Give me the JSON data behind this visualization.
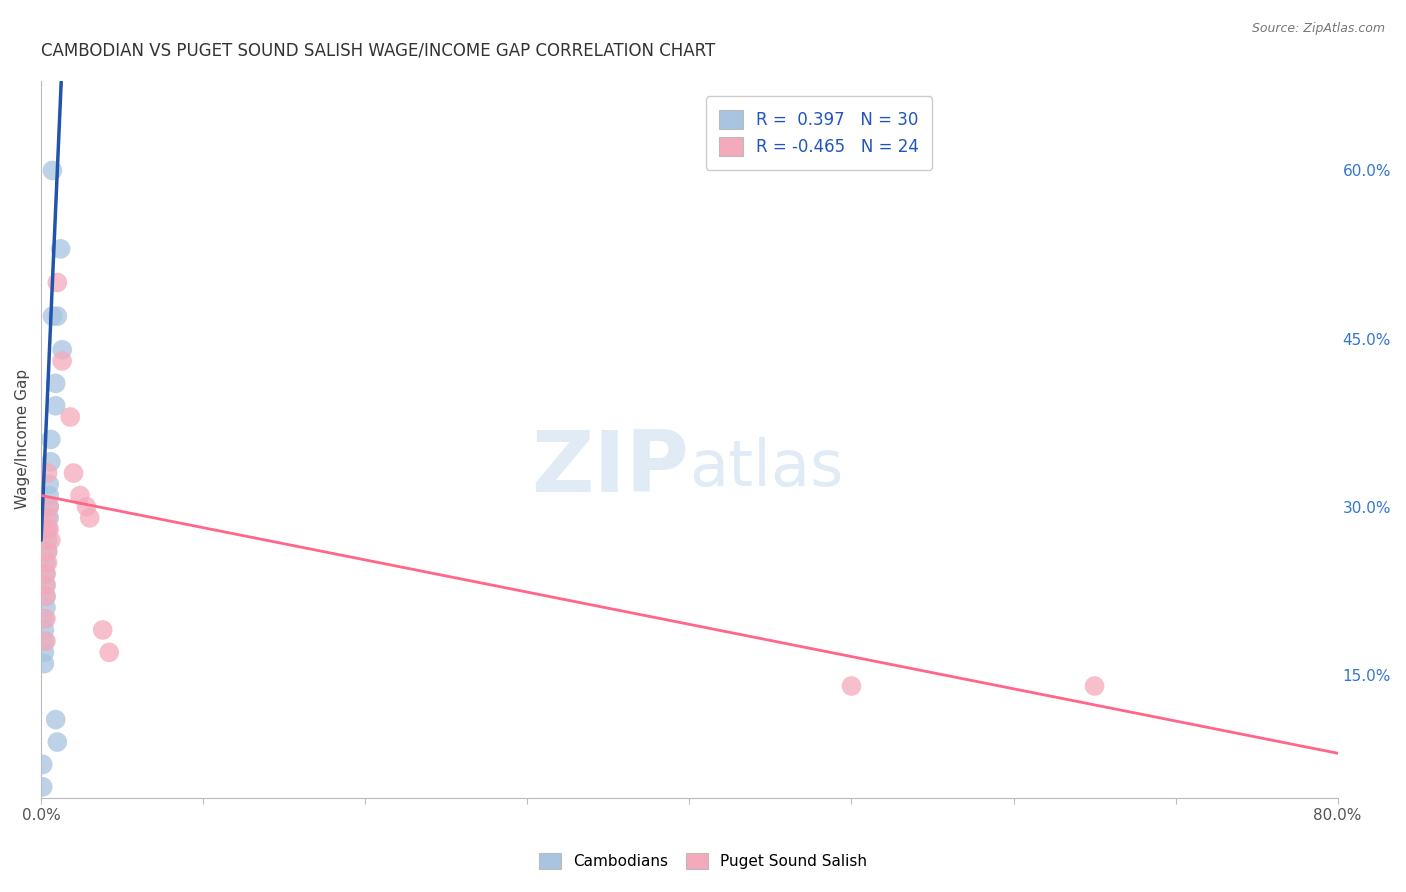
{
  "title": "CAMBODIAN VS PUGET SOUND SALISH WAGE/INCOME GAP CORRELATION CHART",
  "source": "Source: ZipAtlas.com",
  "ylabel": "Wage/Income Gap",
  "y_tick_labels_right": [
    "15.0%",
    "30.0%",
    "45.0%",
    "60.0%"
  ],
  "y_tick_vals_right": [
    0.15,
    0.3,
    0.45,
    0.6
  ],
  "xlim": [
    0.0,
    0.8
  ],
  "ylim": [
    0.04,
    0.68
  ],
  "cambodians_x": [
    0.007,
    0.012,
    0.007,
    0.01,
    0.013,
    0.009,
    0.009,
    0.006,
    0.006,
    0.005,
    0.005,
    0.005,
    0.005,
    0.004,
    0.004,
    0.004,
    0.003,
    0.003,
    0.003,
    0.003,
    0.003,
    0.002,
    0.002,
    0.002,
    0.002,
    0.002,
    0.009,
    0.01,
    0.001,
    0.001
  ],
  "cambodians_y": [
    0.6,
    0.53,
    0.47,
    0.47,
    0.44,
    0.41,
    0.39,
    0.36,
    0.34,
    0.32,
    0.31,
    0.3,
    0.29,
    0.28,
    0.27,
    0.26,
    0.25,
    0.24,
    0.23,
    0.22,
    0.21,
    0.2,
    0.19,
    0.18,
    0.17,
    0.16,
    0.11,
    0.09,
    0.07,
    0.05
  ],
  "salish_x": [
    0.01,
    0.013,
    0.018,
    0.02,
    0.024,
    0.028,
    0.03,
    0.005,
    0.006,
    0.004,
    0.004,
    0.003,
    0.003,
    0.003,
    0.038,
    0.042,
    0.5,
    0.65,
    0.004,
    0.005,
    0.004,
    0.004,
    0.003,
    0.003
  ],
  "salish_y": [
    0.5,
    0.43,
    0.38,
    0.33,
    0.31,
    0.3,
    0.29,
    0.28,
    0.27,
    0.26,
    0.25,
    0.24,
    0.23,
    0.22,
    0.19,
    0.17,
    0.14,
    0.14,
    0.33,
    0.3,
    0.29,
    0.28,
    0.2,
    0.18
  ],
  "blue_color": "#A8C4E0",
  "pink_color": "#F4AABA",
  "blue_line_color": "#2255AA",
  "pink_line_color": "#FF6688",
  "legend_r_cambodian": "0.397",
  "legend_n_cambodian": "30",
  "legend_r_salish": "-0.465",
  "legend_n_salish": "24",
  "watermark_zip": "ZIP",
  "watermark_atlas": "atlas",
  "background_color": "#FFFFFF",
  "grid_color": "#CCCCCC"
}
